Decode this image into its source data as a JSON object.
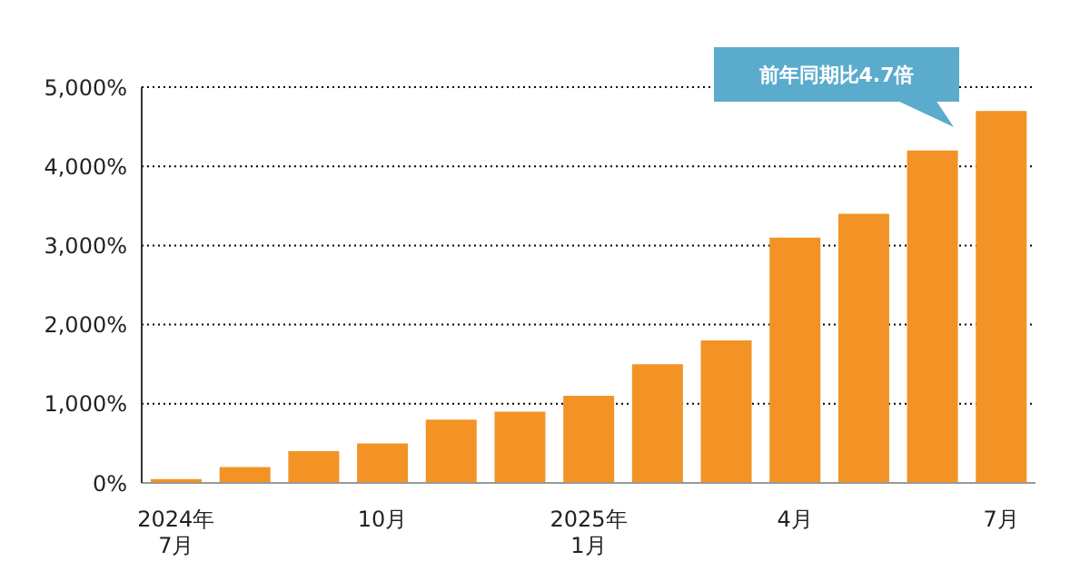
{
  "chart_data": {
    "type": "bar",
    "categories": [
      "2024年\n7月",
      null,
      null,
      "10月",
      null,
      null,
      "2025年\n1月",
      null,
      null,
      "4月",
      null,
      null,
      "7月"
    ],
    "values": [
      50,
      200,
      400,
      500,
      800,
      900,
      1100,
      1500,
      1800,
      3100,
      3400,
      4200,
      4700
    ],
    "color": "#f39325",
    "ylim": [
      0,
      5000
    ],
    "yticks": [
      {
        "value": 0,
        "label": "0%"
      },
      {
        "value": 1000,
        "label": "1,000%"
      },
      {
        "value": 2000,
        "label": "2,000%"
      },
      {
        "value": 3000,
        "label": "3,000%"
      },
      {
        "value": 4000,
        "label": "4,000%"
      },
      {
        "value": 5000,
        "label": "5,000%"
      }
    ],
    "grid": "y",
    "annotations": [
      "前年同期比4.7倍"
    ]
  }
}
